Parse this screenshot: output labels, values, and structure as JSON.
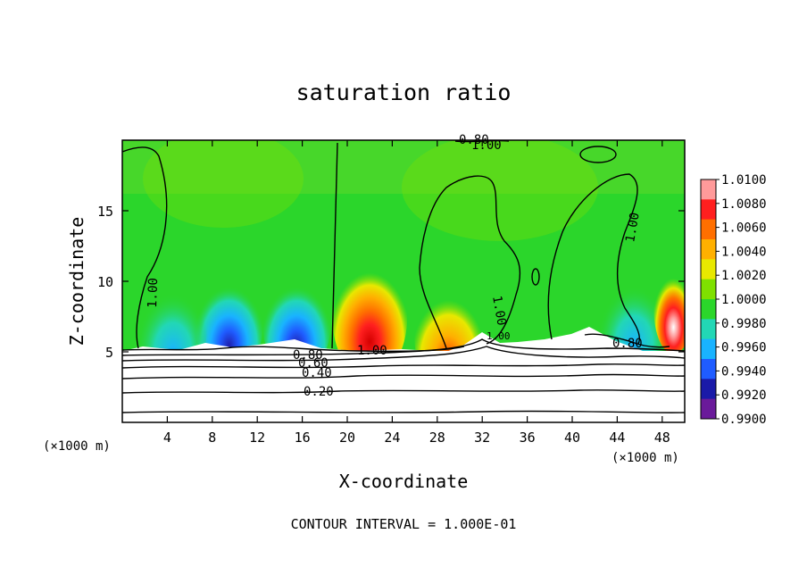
{
  "chart_data": {
    "type": "heatmap",
    "title": "saturation ratio",
    "xlabel": "X-coordinate",
    "ylabel": "Z-coordinate",
    "x_unit": "(×1000 m)",
    "xlim": [
      0,
      50
    ],
    "ylim": [
      0,
      20
    ],
    "x_ticks": [
      4,
      8,
      12,
      16,
      20,
      24,
      28,
      32,
      36,
      40,
      44,
      48
    ],
    "y_ticks": [
      5,
      10,
      15
    ],
    "footnote": "CONTOUR INTERVAL = 1.000E-01",
    "colorbar": {
      "levels": [
        "1.0100",
        "1.0080",
        "1.0060",
        "1.0040",
        "1.0020",
        "1.0000",
        "0.9980",
        "0.9960",
        "0.9940",
        "0.9920",
        "0.9900"
      ],
      "colors": [
        "#ff9a9a",
        "#ff1f1f",
        "#ff6f00",
        "#ffb000",
        "#e8e800",
        "#7fe000",
        "#2bd62b",
        "#22d7b5",
        "#19b3ff",
        "#1f5cff",
        "#1a1aa8",
        "#6a1a9a"
      ]
    },
    "contour_labels": [
      "0.80",
      "1.00",
      "1.00",
      "1.00",
      "1.00",
      "1.00",
      "1.00",
      "0.80",
      "0.60",
      "0.40",
      "0.20",
      "0.80"
    ],
    "bands": [
      {
        "x": 9.5,
        "z": 7.0,
        "value": 0.992
      },
      {
        "x": 15.5,
        "z": 7.0,
        "value": 0.991
      },
      {
        "x": 4.5,
        "z": 6.5,
        "value": 0.996
      },
      {
        "x": 22.0,
        "z": 7.5,
        "value": 1.009
      },
      {
        "x": 29.0,
        "z": 6.0,
        "value": 1.004
      },
      {
        "x": 45.5,
        "z": 7.0,
        "value": 0.997
      },
      {
        "x": 49.0,
        "z": 8.0,
        "value": 1.01
      }
    ]
  }
}
